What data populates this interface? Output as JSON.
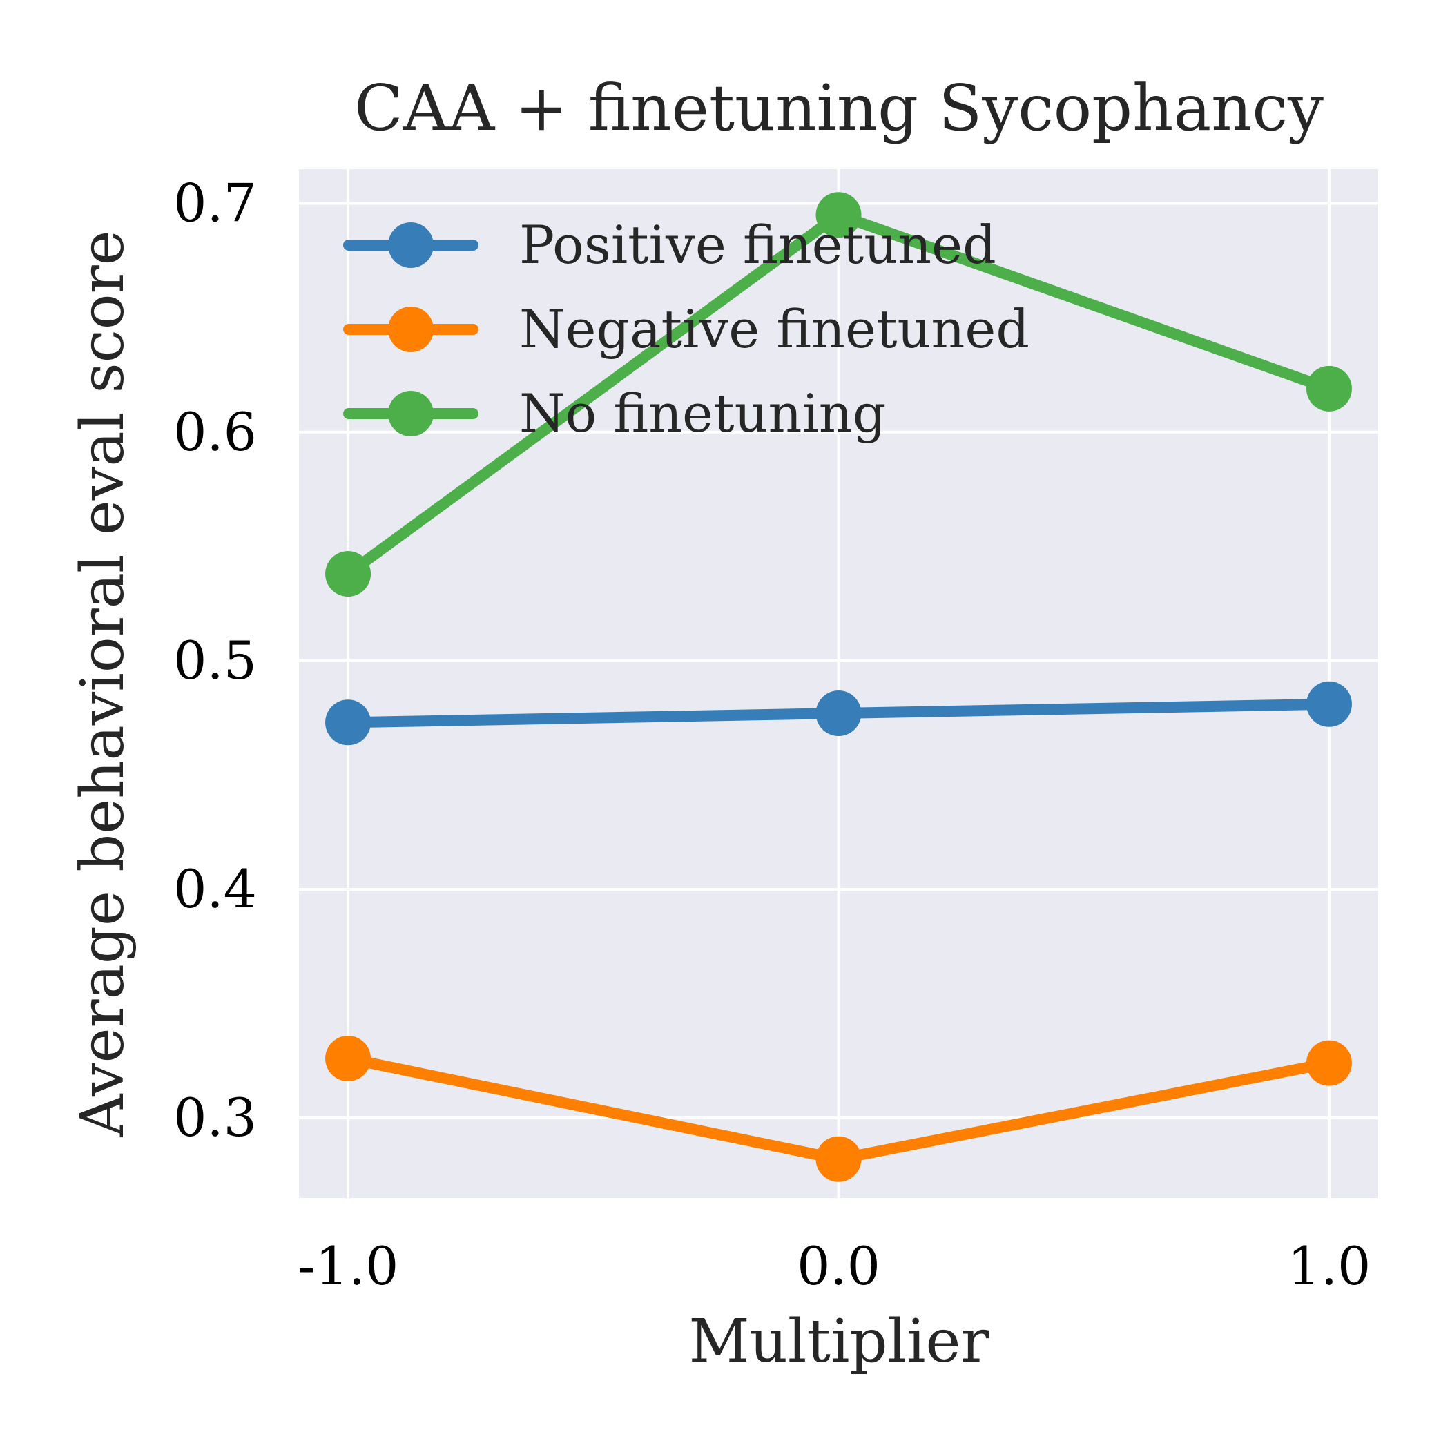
{
  "chart_data": {
    "type": "line",
    "title": "CAA + finetuning Sycophancy",
    "xlabel": "Multiplier",
    "ylabel": "Average behavioral eval score",
    "x": [
      -1.0,
      0.0,
      1.0
    ],
    "x_tick_labels": [
      "-1.0",
      "0.0",
      "1.0"
    ],
    "y_ticks": [
      0.3,
      0.4,
      0.5,
      0.6,
      0.7
    ],
    "y_tick_labels": [
      "0.3",
      "0.4",
      "0.5",
      "0.6",
      "0.7"
    ],
    "xlim": [
      -1.1,
      1.1
    ],
    "ylim": [
      0.265,
      0.715
    ],
    "grid": true,
    "legend_position": "top-left",
    "background": "#eaeaf2",
    "series": [
      {
        "name": "Positive finetuned",
        "color": "#377eb8",
        "values": [
          0.473,
          0.477,
          0.481
        ]
      },
      {
        "name": "Negative finetuned",
        "color": "#ff7f00",
        "values": [
          0.326,
          0.282,
          0.324
        ]
      },
      {
        "name": "No finetuning",
        "color": "#4daf4a",
        "values": [
          0.538,
          0.695,
          0.619
        ]
      }
    ]
  }
}
